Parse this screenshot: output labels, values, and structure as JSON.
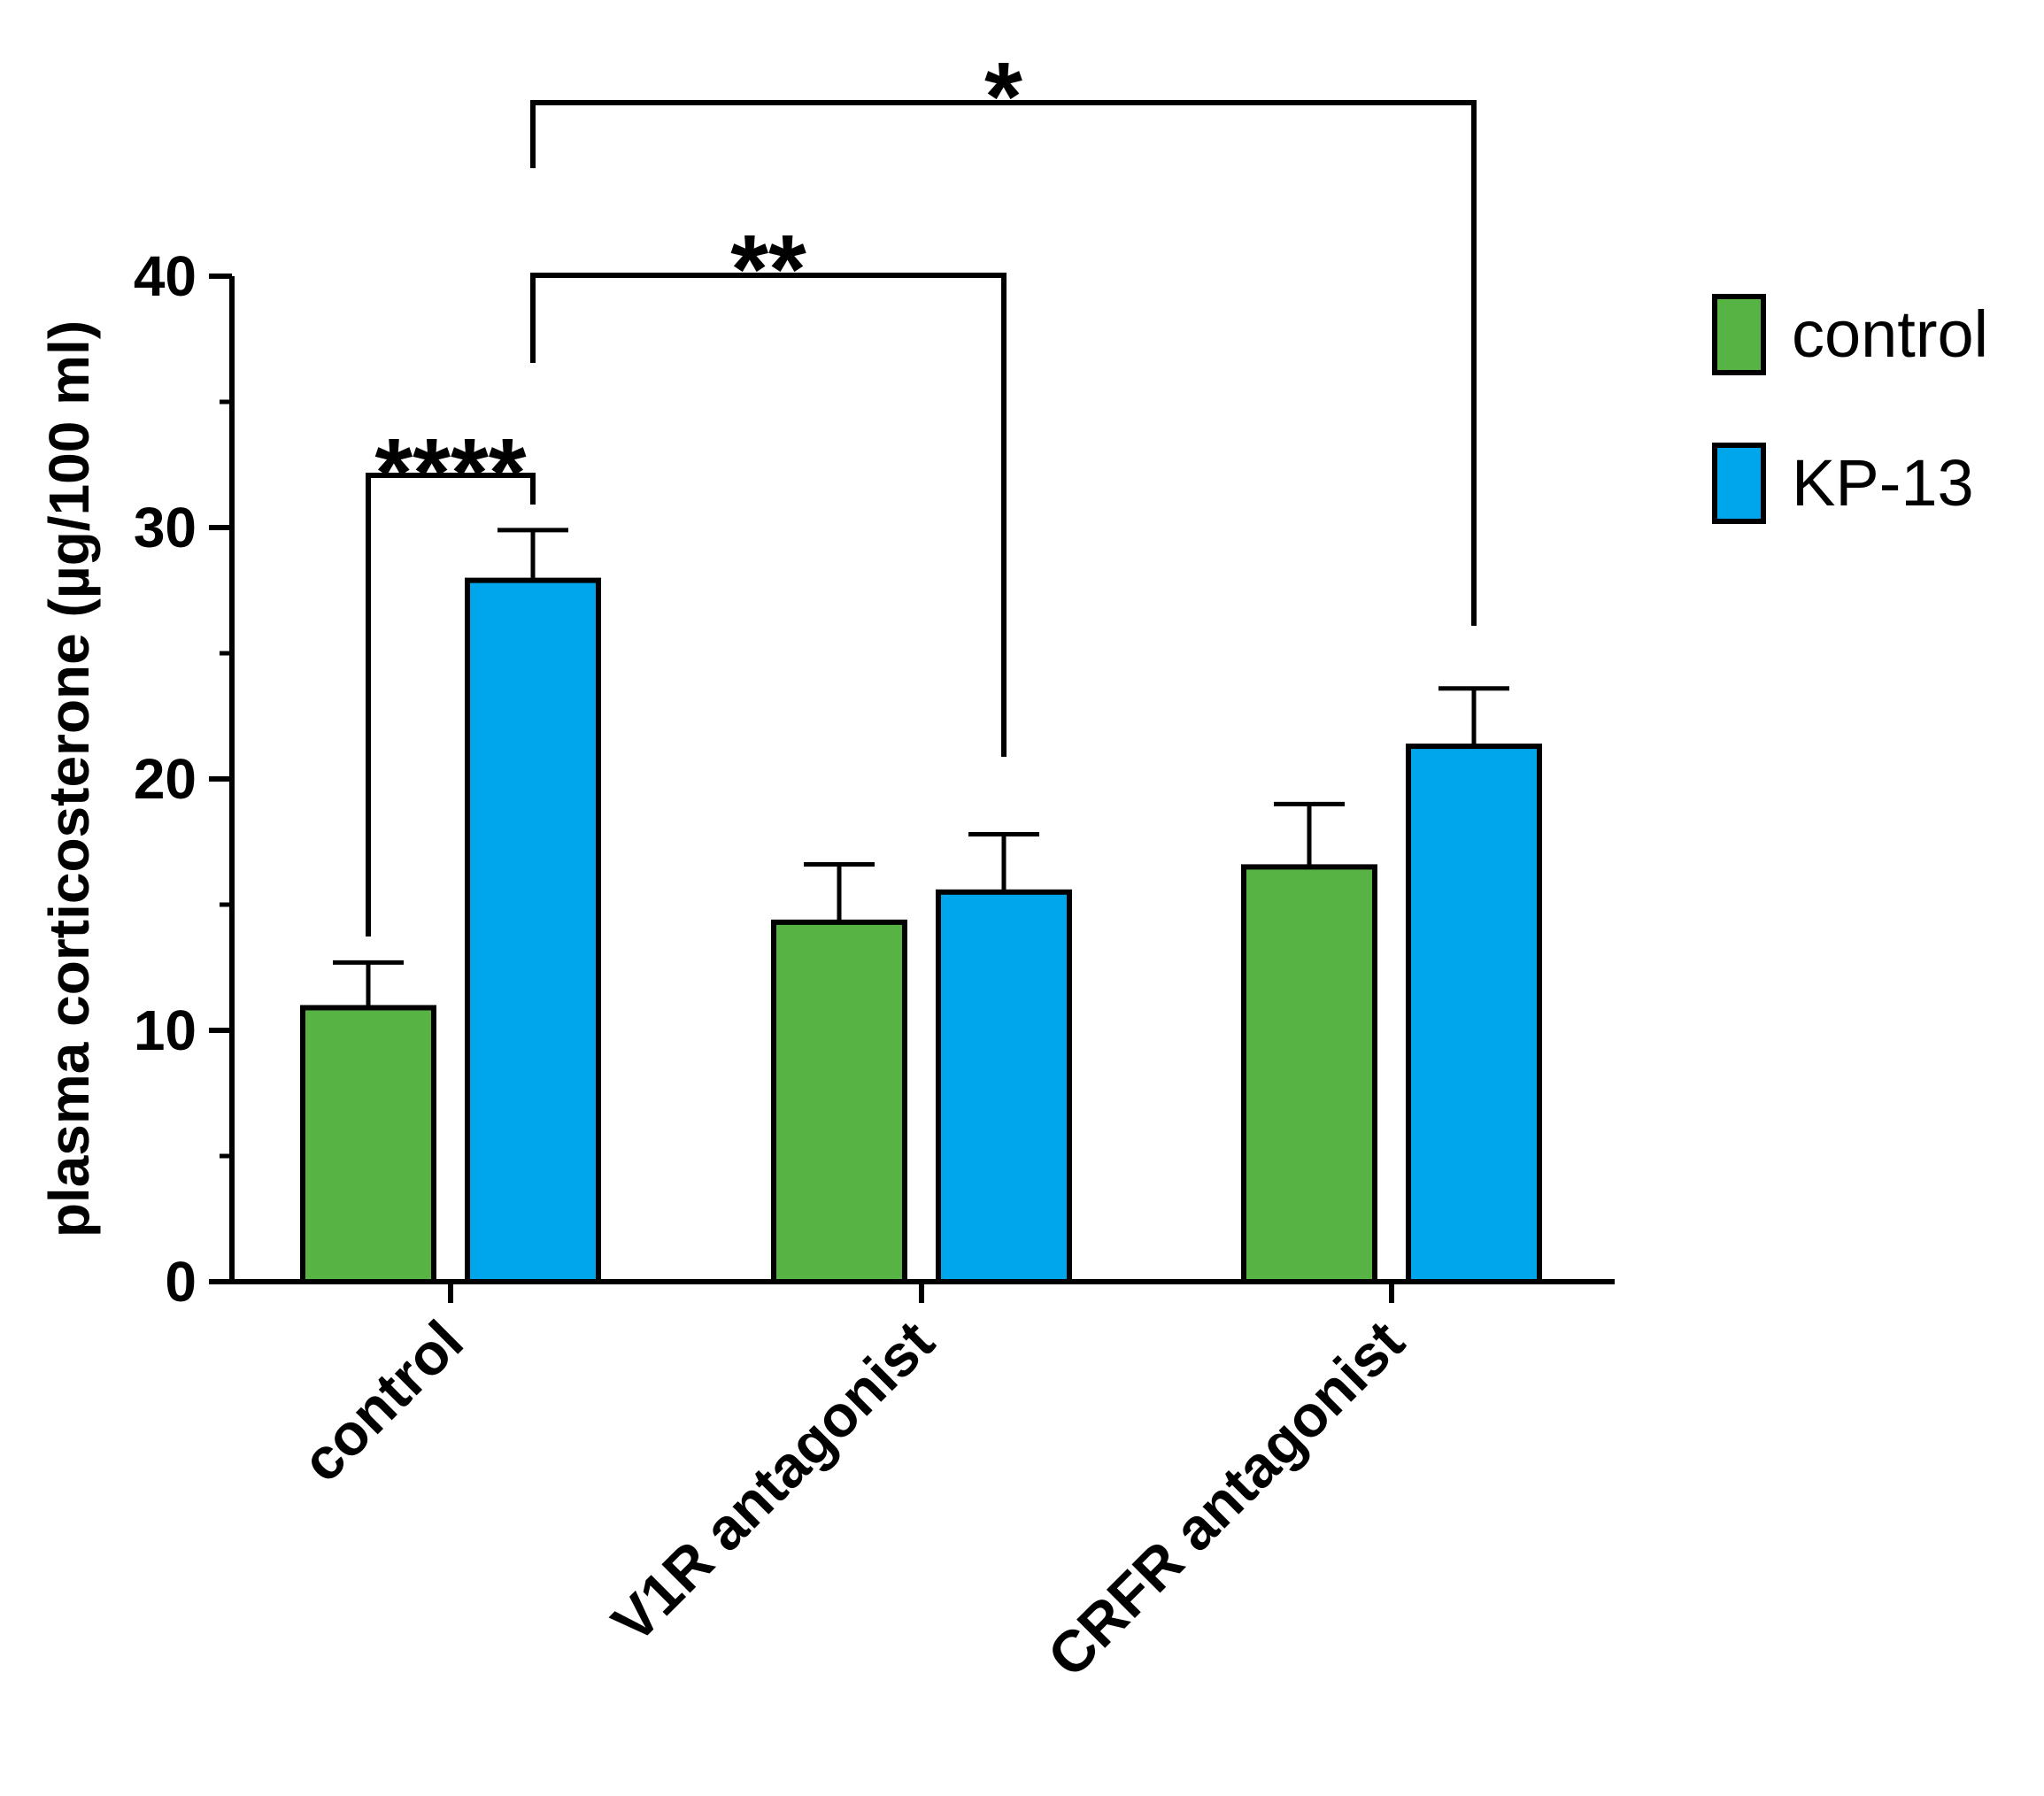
{
  "chart_data": {
    "type": "bar",
    "categories": [
      "control",
      "V1R antagonist",
      "CRFR antagonist"
    ],
    "series": [
      {
        "name": "control",
        "color": "#57b444",
        "values": [
          10.9,
          14.3,
          16.5
        ],
        "errors": [
          1.8,
          2.3,
          2.5
        ]
      },
      {
        "name": "KP-13",
        "color": "#00a6eb",
        "values": [
          27.9,
          15.5,
          21.3
        ],
        "errors": [
          2.0,
          2.3,
          2.3
        ]
      }
    ],
    "ylabel": "plasma corticosterone (µg/100 ml)",
    "xlabel": "",
    "ylim": [
      0,
      40
    ],
    "yticks": [
      "0",
      "10",
      "20",
      "30",
      "40"
    ],
    "legend": {
      "position": "right",
      "entries": [
        "control",
        "KP-13"
      ]
    },
    "annotations": [
      {
        "label": "****",
        "from": "control / control",
        "to": "control / KP-13"
      },
      {
        "label": "**",
        "from": "control / KP-13",
        "to": "V1R antagonist / KP-13"
      },
      {
        "label": "*",
        "from": "control / KP-13",
        "to": "CRFR antagonist / KP-13"
      }
    ]
  }
}
